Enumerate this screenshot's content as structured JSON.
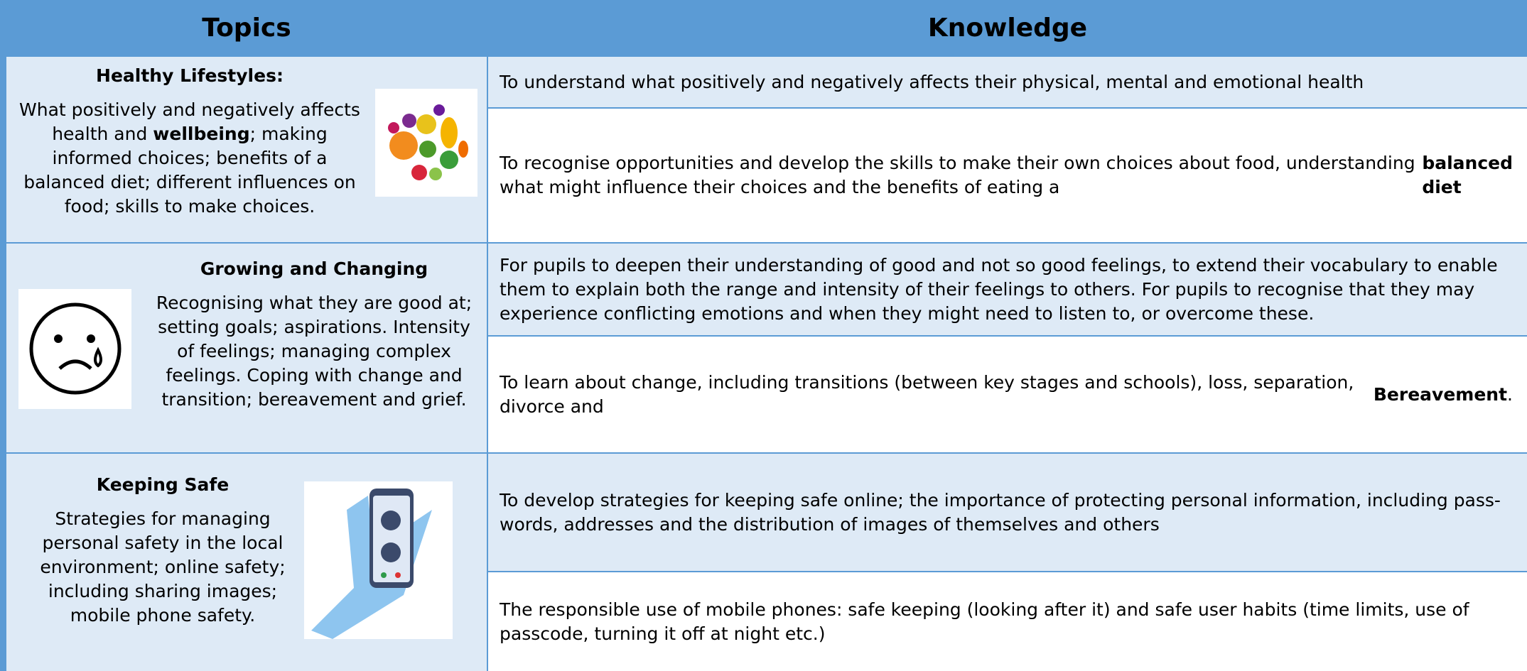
{
  "header": {
    "topics": "Topics",
    "knowledge": "Knowledge"
  },
  "sections": [
    {
      "title": "Healthy Lifestyles:",
      "description": [
        {
          "text": "What positively and negatively affects health and "
        },
        {
          "text": "wellbeing",
          "bold": true
        },
        {
          "text": "; making informed choices; benefits of a balanced diet; different influences on food; skills to make choices."
        }
      ],
      "knowledge": [
        [
          {
            "text": "To understand what positively and negatively affects their physical, mental and emotional health"
          }
        ],
        [
          {
            "text": "To recognise opportunities and develop the skills to make their own choices about food, understanding what might influence their choices and the benefits of eating a "
          },
          {
            "text": "balanced diet",
            "bold": true
          }
        ]
      ]
    },
    {
      "title": "Growing and Changing",
      "description": [
        {
          "text": "Recognising what they are good at; setting goals; aspirations. Intensity of feelings; managing complex feelings. Coping with change and transition; bereavement and grief."
        }
      ],
      "knowledge": [
        [
          {
            "text": "For pupils to deepen their understanding of good and not so good feelings, to extend their vocabulary to enable them to explain both the range and intensity of their feelings to others. For pupils to recognise that they may experience conflicting emotions and when they might need to listen to, or overcome these."
          }
        ],
        [
          {
            "text": "To learn about change, including transitions (between key stages and schools), loss, separation, divorce and "
          },
          {
            "text": "Bereavement",
            "bold": true
          },
          {
            "text": "."
          }
        ]
      ]
    },
    {
      "title": "Keeping Safe",
      "description": [
        {
          "text": "Strategies for managing personal safety in the local environment; online safety; including sharing images; mobile phone safety."
        }
      ],
      "knowledge": [
        [
          {
            "text": "To develop strategies for keeping safe online; the importance of protecting personal information, including pass-words, addresses and the distribution of images of themselves and others"
          }
        ],
        [
          {
            "text": "The responsible use of mobile phones: safe keeping (looking after it) and safe user habits (time limits, use of passcode, turning it off at night etc.)"
          }
        ]
      ]
    }
  ]
}
